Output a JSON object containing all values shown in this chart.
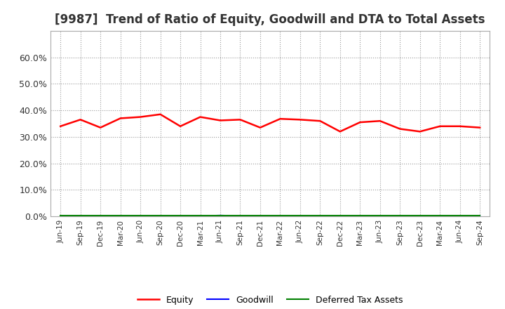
{
  "title": "[9987]  Trend of Ratio of Equity, Goodwill and DTA to Total Assets",
  "x_labels": [
    "Jun-19",
    "Sep-19",
    "Dec-19",
    "Mar-20",
    "Jun-20",
    "Sep-20",
    "Dec-20",
    "Mar-21",
    "Jun-21",
    "Sep-21",
    "Dec-21",
    "Mar-22",
    "Jun-22",
    "Sep-22",
    "Dec-22",
    "Mar-23",
    "Jun-23",
    "Sep-23",
    "Dec-23",
    "Mar-24",
    "Jun-24",
    "Sep-24"
  ],
  "equity": [
    0.34,
    0.365,
    0.335,
    0.37,
    0.375,
    0.385,
    0.34,
    0.375,
    0.362,
    0.365,
    0.335,
    0.368,
    0.365,
    0.36,
    0.32,
    0.355,
    0.36,
    0.33,
    0.32,
    0.34,
    0.34,
    0.335
  ],
  "goodwill": [
    0.001,
    0.001,
    0.001,
    0.001,
    0.001,
    0.001,
    0.001,
    0.001,
    0.003,
    0.001,
    0.001,
    0.001,
    0.001,
    0.001,
    0.001,
    0.001,
    0.001,
    0.001,
    0.001,
    0.001,
    0.001,
    0.001
  ],
  "dta": [
    0.002,
    0.002,
    0.002,
    0.002,
    0.002,
    0.002,
    0.002,
    0.002,
    0.002,
    0.002,
    0.002,
    0.002,
    0.002,
    0.002,
    0.002,
    0.002,
    0.002,
    0.002,
    0.002,
    0.002,
    0.002,
    0.002
  ],
  "equity_color": "#ff0000",
  "goodwill_color": "#0000ff",
  "dta_color": "#008000",
  "ylim": [
    0.0,
    0.7
  ],
  "yticks": [
    0.0,
    0.1,
    0.2,
    0.3,
    0.4,
    0.5,
    0.6
  ],
  "background_color": "#ffffff",
  "plot_bg_color": "#ffffff",
  "grid_color": "#999999",
  "title_fontsize": 12,
  "legend_labels": [
    "Equity",
    "Goodwill",
    "Deferred Tax Assets"
  ]
}
